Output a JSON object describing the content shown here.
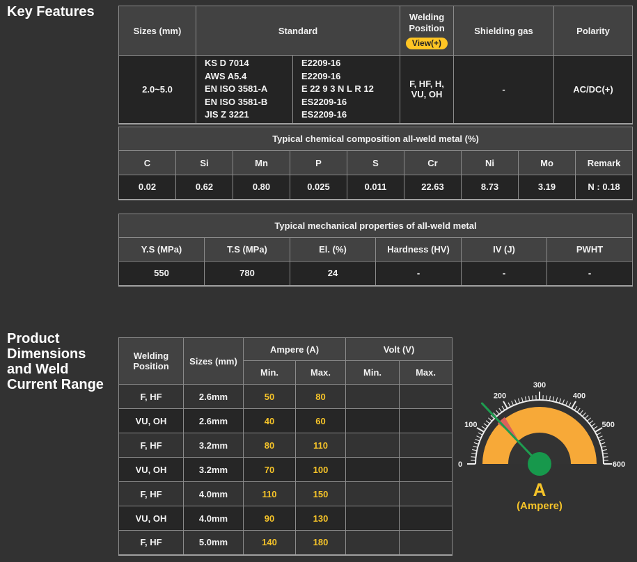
{
  "colors": {
    "page_bg": "#323232",
    "header_bg": "#424242",
    "cell_bg": "#242424",
    "row_light": "#333333",
    "row_dark": "#262626",
    "border": "#8A8A8A",
    "accent_yellow": "#F5C329",
    "badge_bg": "#FFC524",
    "text": "#F2F2F2"
  },
  "key_features": {
    "title": "Key Features"
  },
  "spec_table": {
    "header": {
      "sizes": "Sizes (mm)",
      "standard": "Standard",
      "welding_position": "Welding Position",
      "view_button": "View(+)",
      "shielding_gas": "Shielding gas",
      "polarity": "Polarity"
    },
    "row": {
      "sizes": "2.0~5.0",
      "standards_a": [
        "KS D 7014",
        "AWS A5.4",
        "EN ISO 3581-A",
        "EN ISO 3581-B",
        "JIS Z 3221"
      ],
      "standards_b": [
        "E2209-16",
        "E2209-16",
        "E 22 9 3 N L R 12",
        "ES2209-16",
        "ES2209-16"
      ],
      "welding_position": "F, HF, H, VU, OH",
      "shielding_gas": "-",
      "polarity": "AC/DC(+)"
    }
  },
  "chemical_table": {
    "title": "Typical chemical composition all-weld metal (%)",
    "columns": [
      "C",
      "Si",
      "Mn",
      "P",
      "S",
      "Cr",
      "Ni",
      "Mo",
      "Remark"
    ],
    "values": [
      "0.02",
      "0.62",
      "0.80",
      "0.025",
      "0.011",
      "22.63",
      "8.73",
      "3.19",
      "N : 0.18"
    ]
  },
  "mechanical_table": {
    "title": "Typical mechanical properties of all-weld metal",
    "columns": [
      "Y.S (MPa)",
      "T.S (MPa)",
      "El. (%)",
      "Hardness (HV)",
      "IV (J)",
      "PWHT"
    ],
    "values": [
      "550",
      "780",
      "24",
      "-",
      "-",
      "-"
    ]
  },
  "product_dimensions": {
    "title": "Product Dimensions and Weld Current Range",
    "table": {
      "header": {
        "welding_position": "Welding Position",
        "sizes": "Sizes (mm)",
        "ampere": "Ampere (A)",
        "volt": "Volt (V)",
        "min": "Min.",
        "max": "Max."
      },
      "rows": [
        {
          "position": "F, HF",
          "size": "2.6mm",
          "amp_min": "50",
          "amp_max": "80",
          "volt_min": "",
          "volt_max": ""
        },
        {
          "position": "VU, OH",
          "size": "2.6mm",
          "amp_min": "40",
          "amp_max": "60",
          "volt_min": "",
          "volt_max": ""
        },
        {
          "position": "F, HF",
          "size": "3.2mm",
          "amp_min": "80",
          "amp_max": "110",
          "volt_min": "",
          "volt_max": ""
        },
        {
          "position": "VU, OH",
          "size": "3.2mm",
          "amp_min": "70",
          "amp_max": "100",
          "volt_min": "",
          "volt_max": ""
        },
        {
          "position": "F, HF",
          "size": "4.0mm",
          "amp_min": "110",
          "amp_max": "150",
          "volt_min": "",
          "volt_max": ""
        },
        {
          "position": "VU, OH",
          "size": "4.0mm",
          "amp_min": "90",
          "amp_max": "130",
          "volt_min": "",
          "volt_max": ""
        },
        {
          "position": "F, HF",
          "size": "5.0mm",
          "amp_min": "140",
          "amp_max": "180",
          "volt_min": "",
          "volt_max": ""
        }
      ]
    }
  },
  "gauge": {
    "min": 0,
    "max": 600,
    "minor_step": 10,
    "major_step": 100,
    "tick_labels": [
      "0",
      "100",
      "200",
      "300",
      "400",
      "500",
      "600"
    ],
    "band_color": "#F7A938",
    "highlight_from": 147,
    "highlight_to": 178,
    "highlight_color": "#DB615C",
    "needle_value": 155,
    "needle_color": "#1E9C50",
    "hub_color": "#17984C",
    "unit_symbol": "A",
    "unit_label": "(Ampere)",
    "unit_color": "#F5C329"
  }
}
